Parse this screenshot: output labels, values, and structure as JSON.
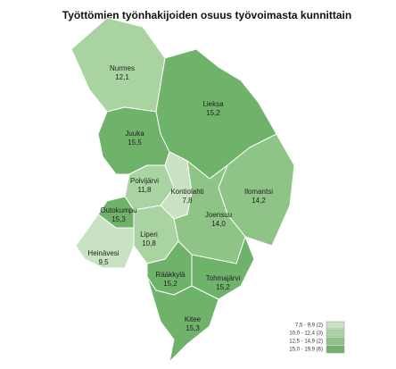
{
  "title": "Työttömien työnhakijoiden osuus työvoimasta kunnittain",
  "regions": [
    {
      "name": "Nurmes",
      "value": 12.1,
      "value_label": "12,1"
    },
    {
      "name": "Lieksa",
      "value": 15.2,
      "value_label": "15,2"
    },
    {
      "name": "Juuka",
      "value": 15.5,
      "value_label": "15,5"
    },
    {
      "name": "Polvijärvi",
      "value": 11.8,
      "value_label": "11,8"
    },
    {
      "name": "Kontiolahti",
      "value": 7.8,
      "value_label": "7,8"
    },
    {
      "name": "Ilomantsi",
      "value": 14.2,
      "value_label": "14,2"
    },
    {
      "name": "Joensuu",
      "value": 14.0,
      "value_label": "14,0"
    },
    {
      "name": "Outokumpu",
      "value": 15.3,
      "value_label": "15,3"
    },
    {
      "name": "Liperi",
      "value": 10.8,
      "value_label": "10,8"
    },
    {
      "name": "Heinävesi",
      "value": 9.5,
      "value_label": "9,5"
    },
    {
      "name": "Rääkkylä",
      "value": 15.2,
      "value_label": "15,2"
    },
    {
      "name": "Tohmajärvi",
      "value": 15.2,
      "value_label": "15,2"
    },
    {
      "name": "Kitee",
      "value": 15.3,
      "value_label": "15,3"
    }
  ],
  "legend": [
    {
      "min": 7.5,
      "max": 9.9,
      "count": 2,
      "label": "7,5 - 9,9 (2)",
      "color": "#c8e2c2"
    },
    {
      "min": 10.0,
      "max": 12.4,
      "count": 3,
      "label": "10,0 - 12,4 (3)",
      "color": "#aad3a2"
    },
    {
      "min": 12.5,
      "max": 14.9,
      "count": 2,
      "label": "12,5 - 14,9 (2)",
      "color": "#8ec486"
    },
    {
      "min": 15.0,
      "max": 19.9,
      "count": 6,
      "label": "15,0 - 19,9 (6)",
      "color": "#6fb36b"
    }
  ]
}
